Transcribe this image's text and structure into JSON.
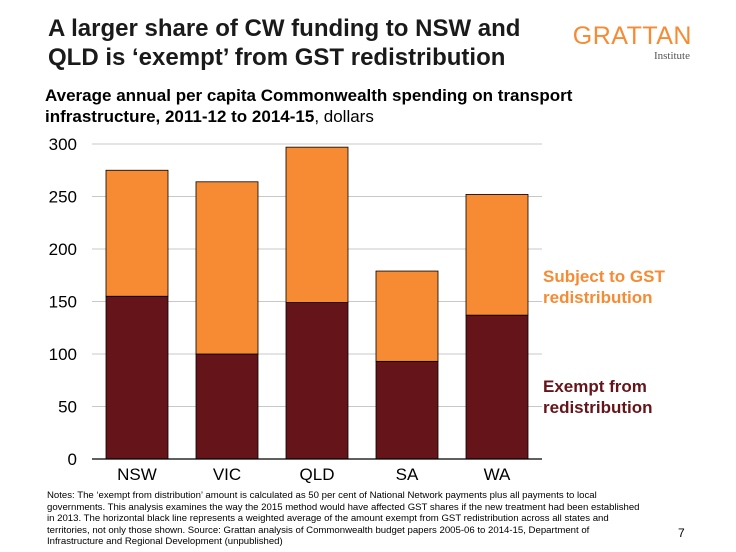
{
  "slide": {
    "title": "A larger share of CW funding to NSW and QLD is ‘exempt’ from GST redistribution",
    "logo_word": "GRATTAN",
    "logo_sub": "Institute",
    "subtitle_bold": "Average annual per capita Commonwealth spending on transport infrastructure, 2011-12 to 2014-15",
    "subtitle_rest": ", dollars",
    "notes": "Notes: The ‘exempt from distribution’ amount is calculated as 50 per cent of National Network payments plus all payments to local governments. This analysis examines the way the 2015 method would have affected GST shares if the new treatment had been established in 2013. The horizontal black line represents a weighted average of the amount exempt from GST redistribution across all states and territories, not only those shown. Source: Grattan analysis of Commonwealth budget papers 2005-06 to 2014-15, Department of Infrastructure and Regional Development (unpublished)",
    "page_number": "7"
  },
  "colors": {
    "accent": "#f68b33",
    "exempt": "#651419",
    "subject": "#f68b33"
  },
  "chart_data": {
    "type": "bar",
    "stacked": true,
    "categories": [
      "NSW",
      "VIC",
      "QLD",
      "SA",
      "WA"
    ],
    "series": [
      {
        "name": "Exempt from redistribution",
        "values": [
          155,
          100,
          149,
          93,
          137
        ]
      },
      {
        "name": "Subject to GST redistribution",
        "values": [
          120,
          164,
          148,
          86,
          115
        ]
      }
    ],
    "totals": [
      275,
      264,
      297,
      179,
      252
    ],
    "ylim": [
      0,
      300
    ],
    "yticks": [
      0,
      50,
      100,
      150,
      200,
      250,
      300
    ],
    "grid": true,
    "legend": [
      {
        "lines": [
          "Subject to GST",
          "redistribution"
        ],
        "series": 1
      },
      {
        "lines": [
          "Exempt from",
          "redistribution"
        ],
        "series": 0
      }
    ]
  }
}
